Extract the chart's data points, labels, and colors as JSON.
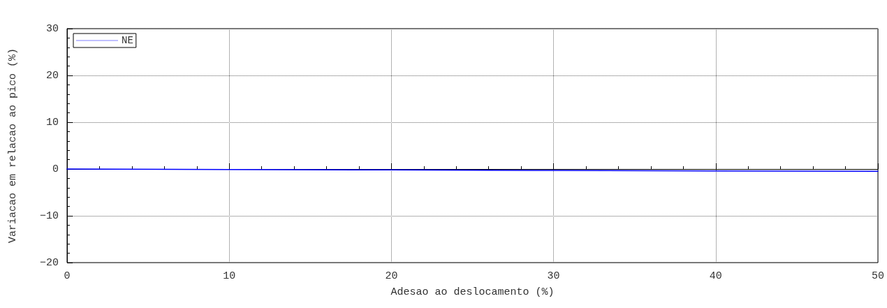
{
  "chart_data": {
    "type": "line",
    "xlabel": "Adesao ao deslocamento (%)",
    "ylabel": "Variacao em relacao ao pico (%)",
    "x": [
      0,
      10,
      20,
      30,
      40,
      50
    ],
    "series": [
      {
        "name": "NE",
        "color": "#0000ff",
        "values": [
          0,
          -0.1,
          -0.2,
          -0.3,
          -0.4,
          -0.5
        ]
      }
    ],
    "xlim": [
      0,
      50
    ],
    "xticks": [
      0,
      10,
      20,
      30,
      40,
      50
    ],
    "ylim": [
      -20,
      30
    ],
    "yticks": [
      -20,
      -10,
      0,
      10,
      20,
      30
    ],
    "grid": true,
    "legend": "top left",
    "marker": "none",
    "line_style": "solid"
  }
}
